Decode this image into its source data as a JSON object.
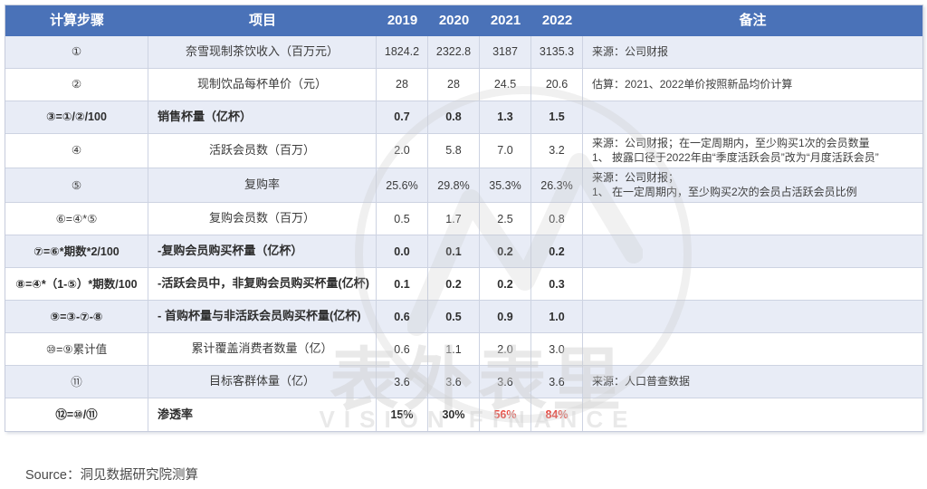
{
  "header": {
    "col_step": "计算步骤",
    "col_item": "项目",
    "years": [
      "2019",
      "2020",
      "2021",
      "2022"
    ],
    "col_note": "备注"
  },
  "rows": [
    {
      "step": "①",
      "item": "奈雪现制茶饮收入（百万元）",
      "values": [
        "1824.2",
        "2322.8",
        "3187",
        "3135.3"
      ],
      "notes": [
        "来源：公司财报"
      ],
      "bold": false,
      "red": []
    },
    {
      "step": "②",
      "item": "现制饮品每杯单价（元）",
      "values": [
        "28",
        "28",
        "24.5",
        "20.6"
      ],
      "notes": [
        "估算：2021、2022单价按照新品均价计算"
      ],
      "bold": false,
      "red": []
    },
    {
      "step": "③=①/②/100",
      "item": "销售杯量（亿杯）",
      "values": [
        "0.7",
        "0.8",
        "1.3",
        "1.5"
      ],
      "notes": [],
      "bold": true,
      "red": []
    },
    {
      "step": "④",
      "item": "活跃会员数（百万）",
      "values": [
        "2.0",
        "5.8",
        "7.0",
        "3.2"
      ],
      "notes": [
        "来源：公司财报；在一定周期内，至少购买1次的会员数量",
        "1、 披露口径于2022年由“季度活跃会员”改为“月度活跃会员”"
      ],
      "bold": false,
      "red": []
    },
    {
      "step": "⑤",
      "item": "复购率",
      "values": [
        "25.6%",
        "29.8%",
        "35.3%",
        "26.3%"
      ],
      "notes": [
        "来源：公司财报；",
        "1、 在一定周期内，至少购买2次的会员占活跃会员比例"
      ],
      "bold": false,
      "red": []
    },
    {
      "step": "⑥=④*⑤",
      "item": "复购会员数（百万）",
      "values": [
        "0.5",
        "1.7",
        "2.5",
        "0.8"
      ],
      "notes": [],
      "bold": false,
      "red": []
    },
    {
      "step": "⑦=⑥*期数*2/100",
      "item": "-复购会员购买杯量（亿杯）",
      "values": [
        "0.0",
        "0.1",
        "0.2",
        "0.2"
      ],
      "notes": [],
      "bold": true,
      "red": []
    },
    {
      "step": "⑧=④*（1-⑤）*期数/100",
      "item": "-活跃会员中，非复购会员购买杯量(亿杯)",
      "values": [
        "0.1",
        "0.2",
        "0.2",
        "0.3"
      ],
      "notes": [],
      "bold": true,
      "red": []
    },
    {
      "step": "⑨=③-⑦-⑧",
      "item": "- 首购杯量与非活跃会员购买杯量(亿杯)",
      "values": [
        "0.6",
        "0.5",
        "0.9",
        "1.0"
      ],
      "notes": [],
      "bold": true,
      "red": []
    },
    {
      "step": "⑩=⑨累计值",
      "item": "累计覆盖消费者数量（亿）",
      "values": [
        "0.6",
        "1.1",
        "2.0",
        "3.0"
      ],
      "notes": [],
      "bold": false,
      "red": []
    },
    {
      "step": "⑪",
      "item": "目标客群体量（亿）",
      "values": [
        "3.6",
        "3.6",
        "3.6",
        "3.6"
      ],
      "notes": [
        "来源：人口普查数据"
      ],
      "bold": false,
      "red": []
    },
    {
      "step": "⑫=⑩/⑪",
      "item": "渗透率",
      "values": [
        "15%",
        "30%",
        "56%",
        "84%"
      ],
      "notes": [],
      "bold": true,
      "red": [
        2,
        3
      ]
    }
  ],
  "watermark": {
    "title": "表外表里",
    "subtitle": "VISION FINANCE"
  },
  "footer": {
    "source": "Source：洞见数据研究院测算"
  },
  "colors": {
    "header_bg": "#4a72b8",
    "row_shade": "#e8ecf6",
    "value_red": "#e8453c",
    "border": "#cdd3e2"
  }
}
